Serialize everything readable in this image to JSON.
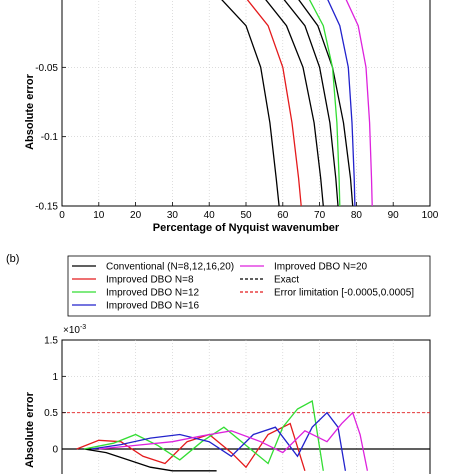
{
  "chart_data": [
    {
      "type": "line",
      "panel_label": "",
      "xlabel": "Percentage of Nyquist wavenumber",
      "ylabel": "Absolute error",
      "xlim": [
        0,
        100
      ],
      "ylim": [
        -0.15,
        0
      ],
      "xticks": [
        "0",
        "10",
        "20",
        "30",
        "40",
        "50",
        "60",
        "70",
        "80",
        "90",
        "100"
      ],
      "yticks": [
        {
          "value": -0.05,
          "label": "-0.05"
        },
        {
          "value": -0.1,
          "label": "-0.1"
        },
        {
          "value": -0.15,
          "label": "-0.15"
        }
      ],
      "grid": true,
      "series": [
        {
          "name": "Conventional (N=8,12,16,20)",
          "color": "#000000",
          "x": [
            43,
            50,
            54,
            56.5,
            58.2,
            59
          ],
          "y": [
            0,
            -0.02,
            -0.05,
            -0.09,
            -0.13,
            -0.15
          ]
        },
        {
          "name": "Improved DBO N=8",
          "color": "#e41a1c",
          "x": [
            50,
            56,
            60,
            62.5,
            64.3,
            65
          ],
          "y": [
            0,
            -0.02,
            -0.05,
            -0.09,
            -0.13,
            -0.15
          ]
        },
        {
          "name": "",
          "color": "#000000",
          "x": [
            55,
            61,
            65.5,
            68.5,
            70.3,
            71
          ],
          "y": [
            0,
            -0.02,
            -0.05,
            -0.09,
            -0.13,
            -0.15
          ]
        },
        {
          "name": "",
          "color": "#000000",
          "x": [
            60,
            66,
            70,
            72.8,
            74.4,
            75
          ],
          "y": [
            0,
            -0.02,
            -0.05,
            -0.09,
            -0.13,
            -0.15
          ]
        },
        {
          "name": "",
          "color": "#000000",
          "x": [
            64,
            69.5,
            73.5,
            76.5,
            78.4,
            79
          ],
          "y": [
            0,
            -0.02,
            -0.05,
            -0.09,
            -0.13,
            -0.15
          ]
        },
        {
          "name": "Improved DBO N=12",
          "color": "#33dd33",
          "x": [
            67,
            71,
            73.5,
            74.7,
            75.3,
            75.5
          ],
          "y": [
            0,
            -0.02,
            -0.05,
            -0.09,
            -0.13,
            -0.15
          ]
        },
        {
          "name": "Improved DBO N=16",
          "color": "#2222cc",
          "x": [
            72,
            75.5,
            77.8,
            78.8,
            79.4,
            79.6
          ],
          "y": [
            0,
            -0.02,
            -0.05,
            -0.09,
            -0.13,
            -0.15
          ]
        },
        {
          "name": "Improved DBO N=20",
          "color": "#dd22dd",
          "x": [
            77,
            80.5,
            82.6,
            83.6,
            84.1,
            84.3
          ],
          "y": [
            0,
            -0.02,
            -0.05,
            -0.09,
            -0.13,
            -0.15
          ]
        }
      ]
    },
    {
      "type": "line",
      "panel_label": "(b)",
      "ylabel": "Absolute error",
      "y_multiplier": "×10",
      "y_multiplier_exp": "-3",
      "xlim": [
        0,
        100
      ],
      "ylim": [
        -0.3,
        1.5
      ],
      "yticks": [
        {
          "value": 1.5,
          "label": "1.5"
        },
        {
          "value": 1,
          "label": "1"
        },
        {
          "value": 0.5,
          "label": "0.5"
        },
        {
          "value": 0,
          "label": "0"
        }
      ],
      "grid": true,
      "legend": [
        {
          "name": "Conventional (N=8,12,16,20)",
          "color": "#000000",
          "dash": false
        },
        {
          "name": "Improved DBO N=8",
          "color": "#e41a1c",
          "dash": false
        },
        {
          "name": "Improved DBO N=12",
          "color": "#33dd33",
          "dash": false
        },
        {
          "name": "Improved DBO N=16",
          "color": "#2222cc",
          "dash": false
        },
        {
          "name": "Improved DBO N=20",
          "color": "#dd22dd",
          "dash": false
        },
        {
          "name": "Exact",
          "color": "#000000",
          "dash": true
        },
        {
          "name": "Error limitation [-0.0005,0.0005]",
          "color": "#e41a1c",
          "dash": true
        }
      ],
      "reference_lines": [
        {
          "y": 0.5,
          "color": "#e41a1c"
        },
        {
          "y": 0,
          "color": "#000000"
        }
      ],
      "series": [
        {
          "name": "Conventional (N=8,12,16,20)",
          "color": "#000000",
          "x": [
            6,
            12,
            18,
            24,
            30,
            36,
            42
          ],
          "y": [
            0,
            -0.05,
            -0.15,
            -0.25,
            -0.3,
            -0.3,
            -0.3
          ]
        },
        {
          "name": "Improved DBO N=8",
          "color": "#e41a1c",
          "x": [
            4,
            10,
            16,
            22,
            28,
            34,
            40,
            46,
            50,
            56,
            62,
            66
          ],
          "y": [
            0,
            0.12,
            0.1,
            -0.1,
            -0.2,
            0.1,
            0.2,
            -0.05,
            -0.25,
            0.2,
            0.35,
            -0.3
          ]
        },
        {
          "name": "Improved DBO N=12",
          "color": "#33dd33",
          "x": [
            6,
            14,
            20,
            26,
            32,
            38,
            44,
            50,
            56,
            60,
            64,
            68,
            71
          ],
          "y": [
            0,
            0.08,
            0.2,
            0.05,
            -0.15,
            0.1,
            0.3,
            0.05,
            -0.2,
            0.3,
            0.55,
            0.66,
            -0.3
          ]
        },
        {
          "name": "Improved DBO N=16",
          "color": "#2222cc",
          "x": [
            8,
            16,
            24,
            32,
            40,
            46,
            52,
            58,
            64,
            68,
            72,
            75,
            77
          ],
          "y": [
            0,
            0.06,
            0.15,
            0.2,
            0.1,
            -0.1,
            0.2,
            0.3,
            -0.1,
            0.3,
            0.5,
            0.3,
            -0.3
          ]
        },
        {
          "name": "Improved DBO N=20",
          "color": "#dd22dd",
          "x": [
            10,
            20,
            30,
            38,
            46,
            54,
            60,
            66,
            72,
            76,
            79,
            81,
            83
          ],
          "y": [
            0,
            0.05,
            0.1,
            0.18,
            0.25,
            0.1,
            -0.05,
            0.25,
            0.1,
            0.35,
            0.5,
            0.2,
            -0.3
          ]
        }
      ]
    }
  ]
}
